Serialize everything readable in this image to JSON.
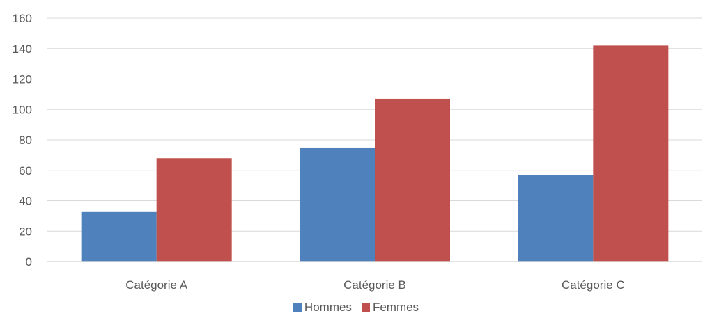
{
  "chart_data": {
    "type": "bar",
    "categories": [
      "Catégorie A",
      "Catégorie B",
      "Catégorie C"
    ],
    "series": [
      {
        "name": "Hommes",
        "values": [
          33,
          75,
          57
        ],
        "color": "#4F81BD"
      },
      {
        "name": "Femmes",
        "values": [
          68,
          107,
          142
        ],
        "color": "#C0504D"
      }
    ],
    "ylim": [
      0,
      160
    ],
    "yticks": [
      0,
      20,
      40,
      60,
      80,
      100,
      120,
      140,
      160
    ],
    "ytick_labels": [
      "0",
      "20",
      "40",
      "60",
      "80",
      "100",
      "120",
      "140",
      "160"
    ],
    "grid": true,
    "legend_position": "bottom",
    "title": "",
    "xlabel": "",
    "ylabel": ""
  }
}
